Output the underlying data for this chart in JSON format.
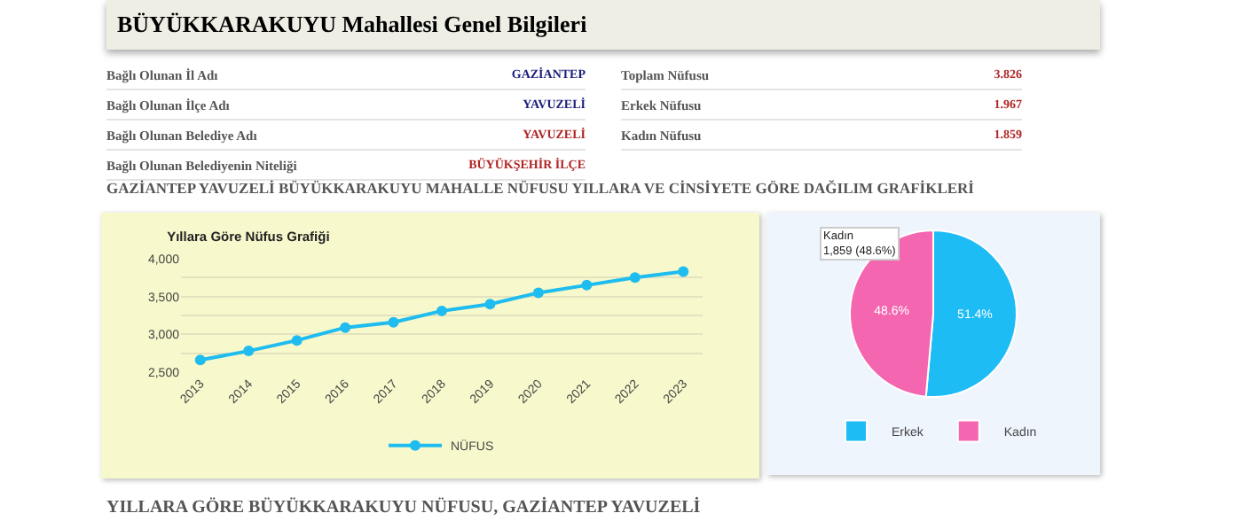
{
  "chart_data": [
    {
      "type": "other",
      "title": "BÜYÜKKARAKUYU Mahallesi Genel Bilgileri",
      "annotations": [
        "Bağlı Olunan İl Adı",
        "GAZİANTEP",
        "Bağlı Olunan İlçe Adı",
        "YAVUZELİ",
        "Bağlı Olunan Belediye Adı",
        "YAVUZELİ",
        "Bağlı Olunan Belediyenin Niteliği",
        "BÜYÜKŞEHİR İLÇE",
        "Toplam Nüfusu",
        "3.826",
        "Erkek Nüfusu",
        "1.967",
        "Kadın Nüfusu",
        "1.859",
        "GAZİANTEP YAVUZELİ BÜYÜKKARAKUYU MAHALLE NÜFUSU YILLARA VE CİNSİYETE GÖRE DAĞILIM GRAFİKLERİ",
        "YILLARA GÖRE BÜYÜKKARAKUYU NÜFUSU, GAZİANTEP YAVUZELİ"
      ]
    },
    {
      "type": "line",
      "title": "Yıllara Göre Nüfus Grafiği",
      "categories": [
        "2013",
        "2014",
        "2015",
        "2016",
        "2017",
        "2018",
        "2019",
        "2020",
        "2021",
        "2022",
        "2023"
      ],
      "series": [
        {
          "name": "NÜFUS",
          "color": "#1fbcef",
          "values": [
            2660,
            2780,
            2920,
            3090,
            3160,
            3310,
            3400,
            3550,
            3650,
            3750,
            3830
          ]
        }
      ],
      "ylim": [
        2500,
        4000
      ],
      "yticks": [
        {
          "value": 2500,
          "label": "2,500"
        },
        {
          "value": 2750,
          "label": null
        },
        {
          "value": 3000,
          "label": "3,000"
        },
        {
          "value": 3250,
          "label": null
        },
        {
          "value": 3500,
          "label": "3,500"
        },
        {
          "value": 3750,
          "label": null
        },
        {
          "value": 4000,
          "label": "4,000"
        }
      ],
      "grid": "y",
      "legend": "bottom",
      "marker": "circle"
    },
    {
      "type": "pie",
      "categories": [
        "Erkek",
        "Kadın"
      ],
      "values": [
        51.4,
        48.6
      ],
      "colors": [
        "#1ebcf5",
        "#f466b0"
      ],
      "value_labels": [
        "51.4%",
        "48.6%"
      ],
      "legend": "bottom",
      "annotations": [
        "Kadın\n1,859 (48.6%)"
      ]
    }
  ]
}
